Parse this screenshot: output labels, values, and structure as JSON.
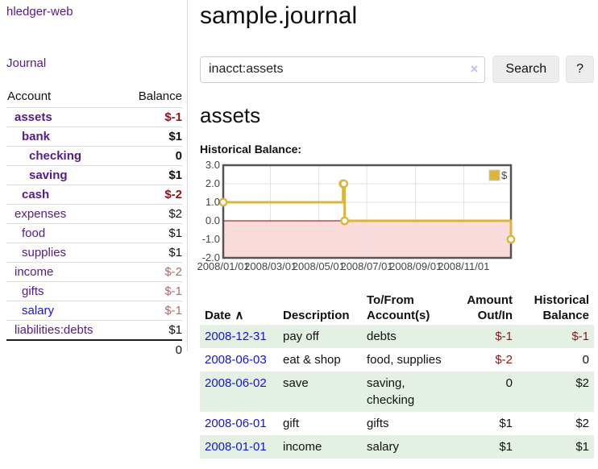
{
  "sidebar": {
    "brand": "hledger-web",
    "nav": {
      "journal": "Journal"
    },
    "accounts_table": {
      "headers": {
        "account": "Account",
        "balance": "Balance"
      },
      "rows": [
        {
          "name": "assets",
          "level": 1,
          "current": true,
          "balance": "$-1",
          "neg": "strong"
        },
        {
          "name": "bank",
          "level": 2,
          "current": true,
          "balance": "$1"
        },
        {
          "name": "checking",
          "level": 3,
          "current": true,
          "balance": "0"
        },
        {
          "name": "saving",
          "level": 3,
          "current": true,
          "balance": "$1"
        },
        {
          "name": "cash",
          "level": 2,
          "current": true,
          "balance": "$-2",
          "neg": "strong"
        },
        {
          "name": "expenses",
          "level": 1,
          "current": false,
          "balance": "$2"
        },
        {
          "name": "food",
          "level": 2,
          "current": false,
          "balance": "$1"
        },
        {
          "name": "supplies",
          "level": 2,
          "current": false,
          "balance": "$1"
        },
        {
          "name": "income",
          "level": 1,
          "current": false,
          "balance": "$-2",
          "neg": "soft"
        },
        {
          "name": "gifts",
          "level": 2,
          "current": false,
          "balance": "$-1",
          "neg": "soft"
        },
        {
          "name": "salary",
          "level": 2,
          "current": false,
          "balance": "$-1",
          "neg": "soft",
          "unvisited": true
        },
        {
          "name": "liabilities:debts",
          "level": 1,
          "current": false,
          "balance": "$1"
        }
      ],
      "total": "0"
    }
  },
  "header": {
    "title": "sample.journal"
  },
  "search": {
    "value": "inacct:assets",
    "clear_icon": "×",
    "button_label": "Search",
    "help_label": "?"
  },
  "account_page": {
    "heading": "assets",
    "chart_label": "Historical Balance:"
  },
  "chart_data": {
    "type": "line",
    "step": true,
    "series": [
      {
        "name": "$",
        "points": [
          [
            "2008-01-01",
            1
          ],
          [
            "2008-06-01",
            2
          ],
          [
            "2008-06-02",
            2
          ],
          [
            "2008-06-03",
            0
          ],
          [
            "2008-12-31",
            -1
          ]
        ]
      }
    ],
    "xlim": [
      "2008-01-01",
      "2008-12-31"
    ],
    "ylim": [
      -2,
      3
    ],
    "yticks": [
      3.0,
      2.0,
      1.0,
      0.0,
      -1.0,
      -2.0
    ],
    "ytick_labels": [
      "3.0",
      "2.0",
      "1.0",
      "0.0",
      "-1.0",
      "-2.0"
    ],
    "xtick_labels": [
      "2008/01/01",
      "2008/03/01",
      "2008/05/01",
      "2008/07/01",
      "2008/09/01",
      "2008/11/01"
    ],
    "legend": {
      "label": "$",
      "position": "top-right"
    },
    "grid": true,
    "line_color": "#dcb53e",
    "marker_fill": "#ffffff",
    "negative_region_color": "#f9dbdb",
    "zero_line_color": "#8b0000",
    "grid_color": "#e2e2e2",
    "border_color": "#545454",
    "axis_text_color": "#444444"
  },
  "register_table": {
    "headers": {
      "date": "Date",
      "sort_icon": "∧",
      "description": "Description",
      "tofrom": "To/From Account(s)",
      "amount": "Amount Out/In",
      "balance": "Historical Balance"
    },
    "rows": [
      {
        "date": "2008-12-31",
        "description": "pay off",
        "accounts": "debts",
        "amount": "$-1",
        "amount_neg": true,
        "balance": "$-1",
        "balance_neg": true
      },
      {
        "date": "2008-06-03",
        "description": "eat & shop",
        "accounts": "food, supplies",
        "amount": "$-2",
        "amount_neg": true,
        "balance": "0",
        "balance_neg": false
      },
      {
        "date": "2008-06-02",
        "description": "save",
        "accounts": "saving, checking",
        "amount": "0",
        "amount_neg": false,
        "balance": "$2",
        "balance_neg": false
      },
      {
        "date": "2008-06-01",
        "description": "gift",
        "accounts": "gifts",
        "amount": "$1",
        "amount_neg": false,
        "balance": "$2",
        "balance_neg": false
      },
      {
        "date": "2008-01-01",
        "description": "income",
        "accounts": "salary",
        "amount": "$1",
        "amount_neg": false,
        "balance": "$1",
        "balance_neg": false
      }
    ]
  },
  "colors": {
    "link_purple": "#551a8b",
    "link_blue": "#1414e0",
    "negative_strong": "#8b1717",
    "negative_muted": "#b36b6b",
    "row_stripe_green": "#e4f0e4",
    "button_bg": "#ededed",
    "divider": "#dddddd"
  }
}
